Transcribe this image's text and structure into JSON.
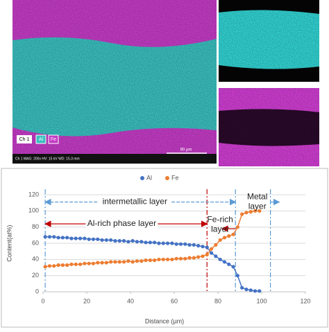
{
  "micrograph": {
    "labels": [
      "Ch 1",
      "Al",
      "Fe"
    ],
    "scale_bar": "90 µm",
    "info": "Ch 1   MAG: 200x   HV: 15 kV   WD: 15.3 mm"
  },
  "chart_data": {
    "type": "line",
    "xlabel": "Distance (µm)",
    "ylabel": "Content(at%)",
    "x": [
      1,
      3,
      5,
      7,
      9,
      11,
      13,
      15,
      17,
      19,
      21,
      23,
      25,
      27,
      29,
      31,
      33,
      35,
      37,
      39,
      41,
      43,
      45,
      47,
      49,
      51,
      53,
      55,
      57,
      59,
      61,
      63,
      65,
      67,
      69,
      71,
      73,
      75,
      77,
      79,
      81,
      83,
      85,
      87,
      89,
      91,
      93,
      95,
      97,
      99
    ],
    "series": [
      {
        "name": "Al",
        "color": "#4472c4",
        "values": [
          68,
          68,
          68,
          67,
          67,
          67,
          66,
          66,
          66,
          66,
          65,
          65,
          65,
          64,
          64,
          64,
          63,
          63,
          63,
          62,
          63,
          62,
          62,
          61,
          61,
          61,
          60,
          60,
          60,
          60,
          59,
          59,
          59,
          58,
          58,
          57,
          56,
          55,
          48,
          44,
          40,
          37,
          34,
          31,
          20,
          5,
          3,
          2,
          1,
          1
        ]
      },
      {
        "name": "Fe",
        "color": "#ed7d31",
        "values": [
          31,
          32,
          32,
          33,
          33,
          33,
          34,
          34,
          34,
          35,
          35,
          35,
          36,
          36,
          36,
          37,
          37,
          37,
          37,
          38,
          37,
          38,
          38,
          39,
          39,
          39,
          40,
          40,
          40,
          40,
          41,
          41,
          41,
          42,
          42,
          43,
          44,
          46,
          53,
          58,
          64,
          67,
          69,
          71,
          80,
          96,
          98,
          99,
          100,
          100
        ]
      }
    ],
    "xlim": [
      0,
      120
    ],
    "xticks": [
      0,
      20,
      40,
      60,
      80,
      100,
      120
    ],
    "ylim": [
      0,
      120
    ],
    "yticks": [
      0,
      20,
      40,
      60,
      80,
      100,
      120
    ],
    "legend": "top",
    "vlines": [
      {
        "x": 1,
        "color": "#5b9bd5"
      },
      {
        "x": 75,
        "color": "#c00000"
      },
      {
        "x": 88,
        "color": "#5b9bd5"
      },
      {
        "x": 104,
        "color": "#5b9bd5"
      }
    ],
    "annotations": [
      {
        "lines": [
          "intermetallic layer"
        ],
        "at": [
          42,
          111
        ],
        "arrow": [
          1,
          88,
          111
        ],
        "color": "#5b9bd5"
      },
      {
        "lines": [
          "Al-rich phase layer"
        ],
        "at": [
          36,
          84
        ],
        "arrow": [
          1,
          75,
          84
        ],
        "color": "#c00000"
      },
      {
        "lines": [
          "Fe-rich",
          "layer"
        ],
        "at": [
          81,
          83
        ],
        "arrow": [
          88,
          82,
          78
        ],
        "color": "#c00000"
      },
      {
        "lines": [
          "Metal",
          "layer"
        ],
        "at": [
          98,
          111
        ],
        "arrow": [
          104,
          108,
          111
        ],
        "color": "#5b9bd5"
      }
    ]
  }
}
